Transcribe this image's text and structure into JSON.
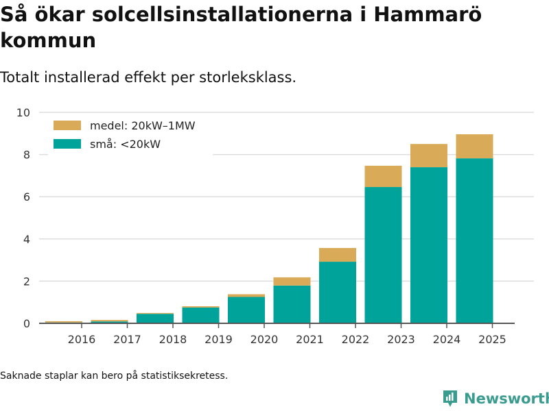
{
  "title": "Så ökar solcellsinstallationerna i Hammarö kommun",
  "subtitle": "Totalt installerad effekt per storleksklass.",
  "footnote": "Saknade staplar kan bero på statistiksekretess.",
  "brand": "Newsworthy",
  "colors": {
    "small": "#00a39a",
    "medium": "#d9ab58",
    "brand": "#3a9b8f"
  },
  "chart_data": {
    "type": "bar",
    "stacked": true,
    "categories": [
      "2016",
      "2017",
      "2018",
      "2019",
      "2020",
      "2021",
      "2022",
      "2023",
      "2024",
      "2025"
    ],
    "series": [
      {
        "name": "små: <20kW",
        "values": [
          0.04,
          0.09,
          0.45,
          0.75,
          1.25,
          1.79,
          2.92,
          6.46,
          7.4,
          7.82
        ]
      },
      {
        "name": "medel: 20kW–1MW",
        "values": [
          0.06,
          0.07,
          0.04,
          0.06,
          0.13,
          0.39,
          0.65,
          1.01,
          1.1,
          1.14
        ]
      }
    ],
    "ylim": [
      0,
      10
    ],
    "yticks": [
      "0",
      "2",
      "4",
      "6",
      "8",
      "10"
    ],
    "legend_position": "top-left",
    "grid": true
  }
}
